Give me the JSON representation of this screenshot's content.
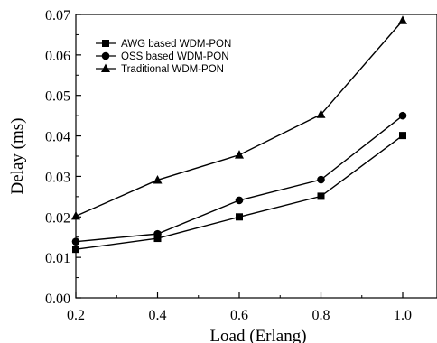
{
  "chart_data": {
    "type": "line",
    "xlabel": "Load (Erlang)",
    "ylabel": "Delay (ms)",
    "xlim": [
      0.2,
      1.0
    ],
    "ylim": [
      0.0,
      0.07
    ],
    "x": [
      0.2,
      0.4,
      0.6,
      0.8,
      1.0
    ],
    "x_ticks": [
      "0.2",
      "0.4",
      "0.6",
      "0.8",
      "1.0"
    ],
    "y_ticks": [
      "0.00",
      "0.01",
      "0.02",
      "0.03",
      "0.04",
      "0.05",
      "0.06",
      "0.07"
    ],
    "y_tick_values": [
      0.0,
      0.01,
      0.02,
      0.03,
      0.04,
      0.05,
      0.06,
      0.07
    ],
    "grid": false,
    "legend_position": "top-left",
    "series": [
      {
        "name": "AWG based WDM-PON",
        "marker": "square",
        "color": "#000000",
        "values": [
          0.012,
          0.0147,
          0.02,
          0.0251,
          0.0401
        ]
      },
      {
        "name": "OSS based WDM-PON",
        "marker": "circle",
        "color": "#000000",
        "values": [
          0.0139,
          0.0158,
          0.0241,
          0.0292,
          0.045
        ]
      },
      {
        "name": "Traditional WDM-PON",
        "marker": "triangle",
        "color": "#000000",
        "values": [
          0.0202,
          0.0291,
          0.0353,
          0.0453,
          0.0685
        ]
      }
    ]
  }
}
